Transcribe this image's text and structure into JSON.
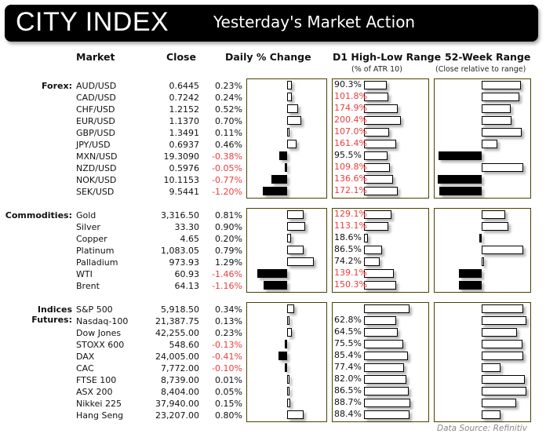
{
  "header": {
    "brand": "CITY INDEX",
    "title": "Yesterday's Market Action"
  },
  "columns": {
    "market": "Market",
    "close": "Close",
    "daily": "Daily % Change",
    "d1": "D1 High-Low Range",
    "d1_sub": "(% of ATR 10)",
    "week52": "52-Week Range",
    "week52_sub": "(Close relative to range)"
  },
  "colors": {
    "negative_text": "#ee3b3b",
    "panel_border": "#4a4200",
    "header_bg": "#000000"
  },
  "sections": [
    {
      "label": "Forex:",
      "rows": [
        {
          "market": "AUD/USD",
          "close": "0.6445",
          "pct": "0.23%",
          "d1": "90.3%"
        },
        {
          "market": "CAD/USD",
          "close": "0.7242",
          "pct": "0.24%",
          "d1": "101.8%"
        },
        {
          "market": "CHF/USD",
          "close": "1.2152",
          "pct": "0.52%",
          "d1": "174.9%"
        },
        {
          "market": "EUR/USD",
          "close": "1.1370",
          "pct": "0.70%",
          "d1": "200.4%"
        },
        {
          "market": "GBP/USD",
          "close": "1.3491",
          "pct": "0.11%",
          "d1": "107.0%"
        },
        {
          "market": "JPY/USD",
          "close": "0.6937",
          "pct": "0.46%",
          "d1": "161.4%"
        },
        {
          "market": "MXN/USD",
          "close": "19.3090",
          "pct": "-0.38%",
          "d1": "95.5%"
        },
        {
          "market": "NZD/USD",
          "close": "0.5976",
          "pct": "-0.05%",
          "d1": "109.8%"
        },
        {
          "market": "NOK/USD",
          "close": "10.1153",
          "pct": "-0.77%",
          "d1": "136.6%"
        },
        {
          "market": "SEK/USD",
          "close": "9.5441",
          "pct": "-1.20%",
          "d1": "172.1%"
        }
      ]
    },
    {
      "label": "Commodities:",
      "rows": [
        {
          "market": "Gold",
          "close": "3,316.50",
          "pct": "0.81%",
          "d1": "129.1%"
        },
        {
          "market": "Silver",
          "close": "33.30",
          "pct": "0.90%",
          "d1": "113.1%"
        },
        {
          "market": "Copper",
          "close": "4.65",
          "pct": "0.20%",
          "d1": "18.6%"
        },
        {
          "market": "Platinum",
          "close": "1,083.05",
          "pct": "0.79%",
          "d1": "86.5%"
        },
        {
          "market": "Palladium",
          "close": "973.93",
          "pct": "1.29%",
          "d1": "74.2%"
        },
        {
          "market": "WTI",
          "close": "60.93",
          "pct": "-1.46%",
          "d1": "139.1%"
        },
        {
          "market": "Brent",
          "close": "64.13",
          "pct": "-1.16%",
          "d1": "150.3%"
        }
      ]
    },
    {
      "label": "Indices Futures:",
      "rows": [
        {
          "market": "S&P 500",
          "close": "5,918.50",
          "pct": "0.34%",
          "d1": ""
        },
        {
          "market": "Nasdaq-100",
          "close": "21,387.75",
          "pct": "0.13%",
          "d1": "62.8%"
        },
        {
          "market": "Dow Jones",
          "close": "42,255.00",
          "pct": "0.23%",
          "d1": "64.5%"
        },
        {
          "market": "STOXX 600",
          "close": "548.60",
          "pct": "-0.13%",
          "d1": "75.5%"
        },
        {
          "market": "DAX",
          "close": "24,005.00",
          "pct": "-0.41%",
          "d1": "85.4%"
        },
        {
          "market": "CAC",
          "close": "7,772.00",
          "pct": "-0.10%",
          "d1": "77.4%"
        },
        {
          "market": "FTSE 100",
          "close": "8,739.00",
          "pct": "0.01%",
          "d1": "82.0%"
        },
        {
          "market": "ASX 200",
          "close": "8,404.00",
          "pct": "0.05%",
          "d1": "86.5%"
        },
        {
          "market": "Nikkei 225",
          "close": "37,940.00",
          "pct": "0.15%",
          "d1": "88.7%"
        },
        {
          "market": "Hang Seng",
          "close": "23,207.00",
          "pct": "0.80%",
          "d1": "88.4%"
        }
      ]
    }
  ],
  "footer": {
    "source": "Data Source: Refinitiv"
  },
  "chart_data": [
    {
      "type": "bar",
      "title": "Daily % Change",
      "categories": [
        "AUD/USD",
        "CAD/USD",
        "CHF/USD",
        "EUR/USD",
        "GBP/USD",
        "JPY/USD",
        "MXN/USD",
        "NZD/USD",
        "NOK/USD",
        "SEK/USD",
        "Gold",
        "Silver",
        "Copper",
        "Platinum",
        "Palladium",
        "WTI",
        "Brent",
        "S&P 500",
        "Nasdaq-100",
        "Dow Jones",
        "STOXX 600",
        "DAX",
        "CAC",
        "FTSE 100",
        "ASX 200",
        "Nikkei 225",
        "Hang Seng"
      ],
      "values": [
        0.23,
        0.24,
        0.52,
        0.7,
        0.11,
        0.46,
        -0.38,
        -0.05,
        -0.77,
        -1.2,
        0.81,
        0.9,
        0.2,
        0.79,
        1.29,
        -1.46,
        -1.16,
        0.34,
        0.13,
        0.23,
        -0.13,
        -0.41,
        -0.1,
        0.01,
        0.05,
        0.15,
        0.8
      ],
      "orientation": "horizontal"
    },
    {
      "type": "bar",
      "title": "D1 High-Low Range (% of ATR 10)",
      "categories": [
        "AUD/USD",
        "CAD/USD",
        "CHF/USD",
        "EUR/USD",
        "GBP/USD",
        "JPY/USD",
        "MXN/USD",
        "NZD/USD",
        "NOK/USD",
        "SEK/USD",
        "Gold",
        "Silver",
        "Copper",
        "Platinum",
        "Palladium",
        "WTI",
        "Brent",
        "S&P 500",
        "Nasdaq-100",
        "Dow Jones",
        "STOXX 600",
        "DAX",
        "CAC",
        "FTSE 100",
        "ASX 200",
        "Nikkei 225",
        "Hang Seng"
      ],
      "values": [
        90.3,
        101.8,
        174.9,
        200.4,
        107.0,
        161.4,
        95.5,
        109.8,
        136.6,
        172.1,
        129.1,
        113.1,
        18.6,
        86.5,
        74.2,
        139.1,
        150.3,
        null,
        62.8,
        64.5,
        75.5,
        85.4,
        77.4,
        82.0,
        86.5,
        88.7,
        88.4
      ],
      "orientation": "horizontal"
    },
    {
      "type": "bar",
      "title": "52-Week Range (Close relative to range)",
      "categories": [
        "AUD/USD",
        "CAD/USD",
        "CHF/USD",
        "EUR/USD",
        "GBP/USD",
        "JPY/USD",
        "MXN/USD",
        "NZD/USD",
        "NOK/USD",
        "SEK/USD",
        "Gold",
        "Silver",
        "Copper",
        "Platinum",
        "Palladium",
        "WTI",
        "Brent",
        "S&P 500",
        "Nasdaq-100",
        "Dow Jones",
        "STOXX 600",
        "DAX",
        "CAC",
        "FTSE 100",
        "ASX 200",
        "Nikkei 225",
        "Hang Seng"
      ],
      "values": [
        86,
        83,
        64,
        66,
        88,
        34,
        -94,
        91,
        -97,
        -93,
        51,
        58,
        -3,
        92,
        3,
        -50,
        -50,
        91,
        98,
        78,
        89,
        91,
        41,
        94,
        98,
        76,
        41
      ],
      "orientation": "horizontal",
      "note": "Bar lengths estimated as % of half-panel width; positive = white bar right of center, negative = black bar left of center"
    }
  ],
  "layout": {
    "d1_scale": [
      0.16,
      0.27,
      0.66
    ]
  }
}
